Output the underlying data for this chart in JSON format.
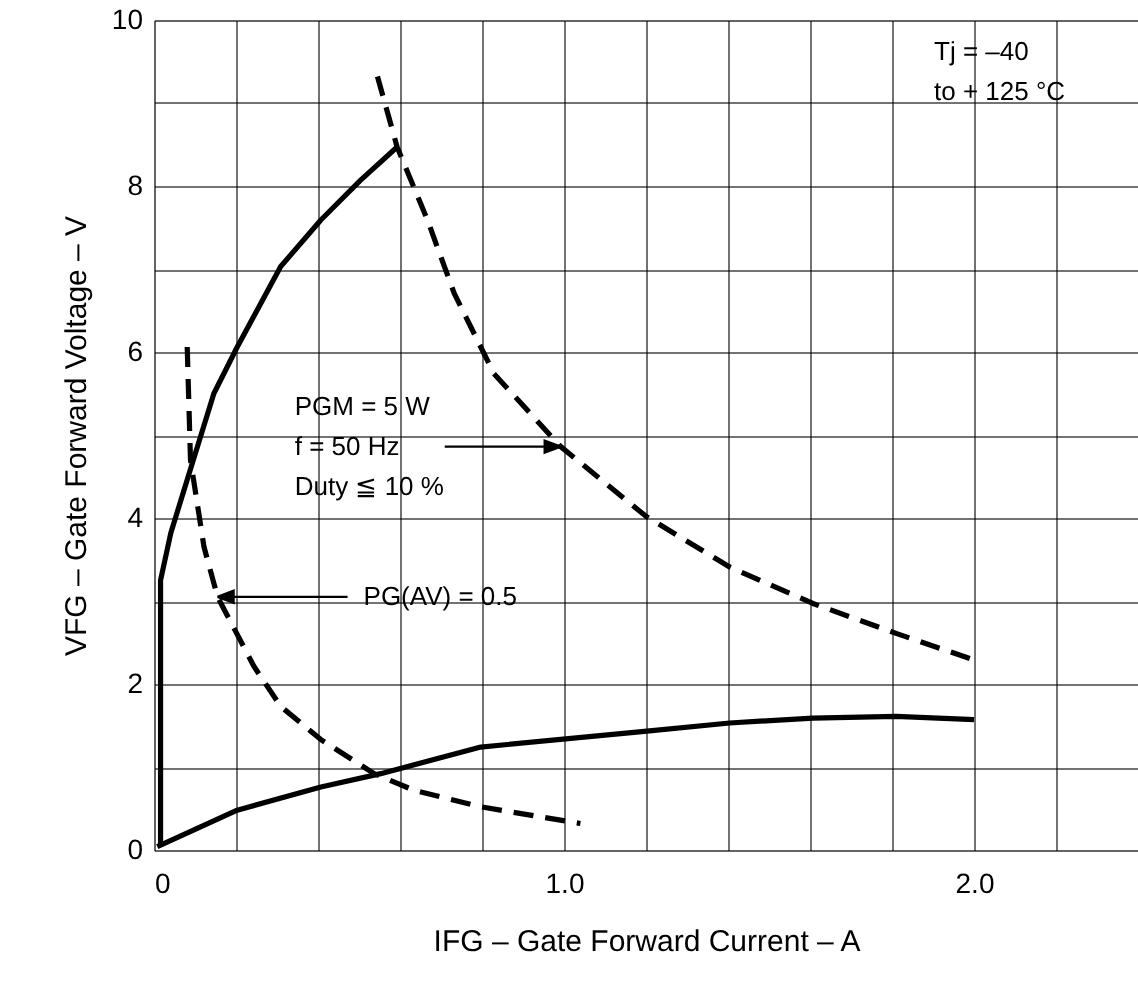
{
  "chart_data": {
    "type": "line",
    "xlabel": "IFG – Gate Forward Current – A",
    "ylabel": "VFG – Gate Forward Voltage – V",
    "xlim": [
      0,
      2.4
    ],
    "xticks": [
      0,
      {
        "value": 0.2,
        "label": null
      },
      {
        "value": 0.4,
        "label": null
      },
      {
        "value": 0.6,
        "label": null
      },
      {
        "value": 0.8,
        "label": null
      },
      {
        "value": 1.0,
        "label": "1.0"
      },
      {
        "value": 1.2,
        "label": null
      },
      {
        "value": 1.4,
        "label": null
      },
      {
        "value": 1.6,
        "label": null
      },
      {
        "value": 1.8,
        "label": null
      },
      {
        "value": 2.0,
        "label": "2.0"
      },
      {
        "value": 2.2,
        "label": null
      }
    ],
    "ylim": [
      0,
      10
    ],
    "yticks": [
      0,
      {
        "value": 1,
        "label": null
      },
      2,
      {
        "value": 3,
        "label": null
      },
      4,
      {
        "value": 5,
        "label": null
      },
      6,
      {
        "value": 7,
        "label": null
      },
      8,
      {
        "value": 9,
        "label": null
      },
      10
    ],
    "grid": true,
    "marker": "none",
    "series": [
      {
        "color": "#000000",
        "line_style": "solid",
        "x": [
          0.016,
          0.016,
          0.016,
          0.041,
          0.081,
          0.146,
          0.203,
          0.309,
          0.407,
          0.504,
          0.593
        ],
        "values": [
          0.04,
          2.3,
          3.25,
          3.82,
          4.46,
          5.5,
          6.06,
          7.03,
          7.59,
          8.07,
          8.47
        ]
      },
      {
        "color": "#000000",
        "line_style": "solid",
        "x": [
          0.008,
          0.203,
          0.407,
          0.553,
          0.797,
          1.196,
          1.404,
          1.607,
          1.81,
          2.0
        ],
        "values": [
          0.04,
          0.48,
          0.76,
          0.92,
          1.24,
          1.43,
          1.53,
          1.59,
          1.61,
          1.57
        ]
      },
      {
        "color": "#000000",
        "line_style": "dashed",
        "x": [
          0.545,
          0.593,
          0.667,
          0.732,
          0.829,
          0.992,
          1.2,
          1.404,
          1.607,
          1.81,
          2.0
        ],
        "values": [
          9.32,
          8.47,
          7.59,
          6.71,
          5.74,
          4.86,
          4.02,
          3.41,
          2.97,
          2.61,
          2.29
        ]
      },
      {
        "color": "#000000",
        "line_style": "dashed",
        "x": [
          0.081,
          0.089,
          0.122,
          0.155,
          0.244,
          0.309,
          0.407,
          0.537,
          0.634,
          0.797,
          1.04
        ],
        "values": [
          6.06,
          4.7,
          3.65,
          3.05,
          2.21,
          1.73,
          1.33,
          0.92,
          0.72,
          0.52,
          0.32
        ]
      }
    ],
    "annotations": [
      {
        "text": "PGM = 5 W\nf = 50 Hz\nDuty ≦ 10 %",
        "x": 0.992,
        "y": 4.86
      },
      {
        "text": "PG(AV) = 0.5",
        "x": 0.155,
        "y": 3.05
      },
      "Tj = –40\nto + 125 °C"
    ]
  }
}
